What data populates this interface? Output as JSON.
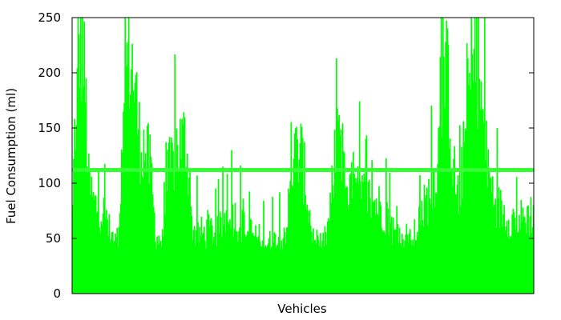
{
  "chart_data": {
    "type": "bar",
    "xlabel": "Vehicles",
    "ylabel": "Fuel Consumption (ml)",
    "ylim": [
      0,
      250
    ],
    "yticks": [
      0,
      50,
      100,
      150,
      200,
      250
    ],
    "grid": false,
    "bar_color": "#00ff00",
    "reference_line": {
      "value": 112,
      "color": "#33ff33"
    },
    "n_vehicles": 520,
    "profile": [
      [
        0,
        95
      ],
      [
        0.003,
        175
      ],
      [
        0.006,
        210
      ],
      [
        0.008,
        170
      ],
      [
        0.01,
        245
      ],
      [
        0.012,
        290
      ],
      [
        0.022,
        290
      ],
      [
        0.03,
        200
      ],
      [
        0.034,
        130
      ],
      [
        0.045,
        105
      ],
      [
        0.065,
        95
      ],
      [
        0.075,
        88
      ],
      [
        0.08,
        72
      ],
      [
        0.088,
        60
      ],
      [
        0.093,
        58
      ],
      [
        0.1,
        65
      ],
      [
        0.105,
        95
      ],
      [
        0.11,
        185
      ],
      [
        0.115,
        260
      ],
      [
        0.125,
        280
      ],
      [
        0.135,
        240
      ],
      [
        0.145,
        180
      ],
      [
        0.16,
        165
      ],
      [
        0.17,
        140
      ],
      [
        0.178,
        80
      ],
      [
        0.185,
        62
      ],
      [
        0.19,
        65
      ],
      [
        0.195,
        60
      ],
      [
        0.2,
        95
      ],
      [
        0.205,
        135
      ],
      [
        0.215,
        150
      ],
      [
        0.225,
        170
      ],
      [
        0.235,
        175
      ],
      [
        0.245,
        180
      ],
      [
        0.25,
        160
      ],
      [
        0.255,
        90
      ],
      [
        0.265,
        72
      ],
      [
        0.285,
        70
      ],
      [
        0.3,
        74
      ],
      [
        0.315,
        70
      ],
      [
        0.325,
        80
      ],
      [
        0.335,
        95
      ],
      [
        0.34,
        100
      ],
      [
        0.35,
        92
      ],
      [
        0.36,
        82
      ],
      [
        0.375,
        75
      ],
      [
        0.39,
        70
      ],
      [
        0.41,
        62
      ],
      [
        0.43,
        58
      ],
      [
        0.45,
        65
      ],
      [
        0.465,
        80
      ],
      [
        0.475,
        140
      ],
      [
        0.485,
        165
      ],
      [
        0.495,
        165
      ],
      [
        0.505,
        130
      ],
      [
        0.512,
        100
      ],
      [
        0.52,
        70
      ],
      [
        0.53,
        58
      ],
      [
        0.54,
        55
      ],
      [
        0.55,
        65
      ],
      [
        0.56,
        100
      ],
      [
        0.57,
        165
      ],
      [
        0.575,
        215
      ],
      [
        0.58,
        200
      ],
      [
        0.59,
        140
      ],
      [
        0.6,
        122
      ],
      [
        0.62,
        118
      ],
      [
        0.64,
        112
      ],
      [
        0.66,
        105
      ],
      [
        0.68,
        95
      ],
      [
        0.695,
        75
      ],
      [
        0.705,
        60
      ],
      [
        0.715,
        58
      ],
      [
        0.725,
        55
      ],
      [
        0.74,
        65
      ],
      [
        0.755,
        90
      ],
      [
        0.77,
        110
      ],
      [
        0.78,
        125
      ],
      [
        0.79,
        150
      ],
      [
        0.8,
        200
      ],
      [
        0.805,
        255
      ],
      [
        0.815,
        250
      ],
      [
        0.823,
        165
      ],
      [
        0.83,
        130
      ],
      [
        0.84,
        110
      ],
      [
        0.85,
        175
      ],
      [
        0.86,
        230
      ],
      [
        0.87,
        265
      ],
      [
        0.88,
        270
      ],
      [
        0.89,
        200
      ],
      [
        0.9,
        150
      ],
      [
        0.91,
        120
      ],
      [
        0.925,
        100
      ],
      [
        0.945,
        90
      ],
      [
        0.965,
        85
      ],
      [
        0.985,
        90
      ],
      [
        1.0,
        95
      ]
    ]
  }
}
